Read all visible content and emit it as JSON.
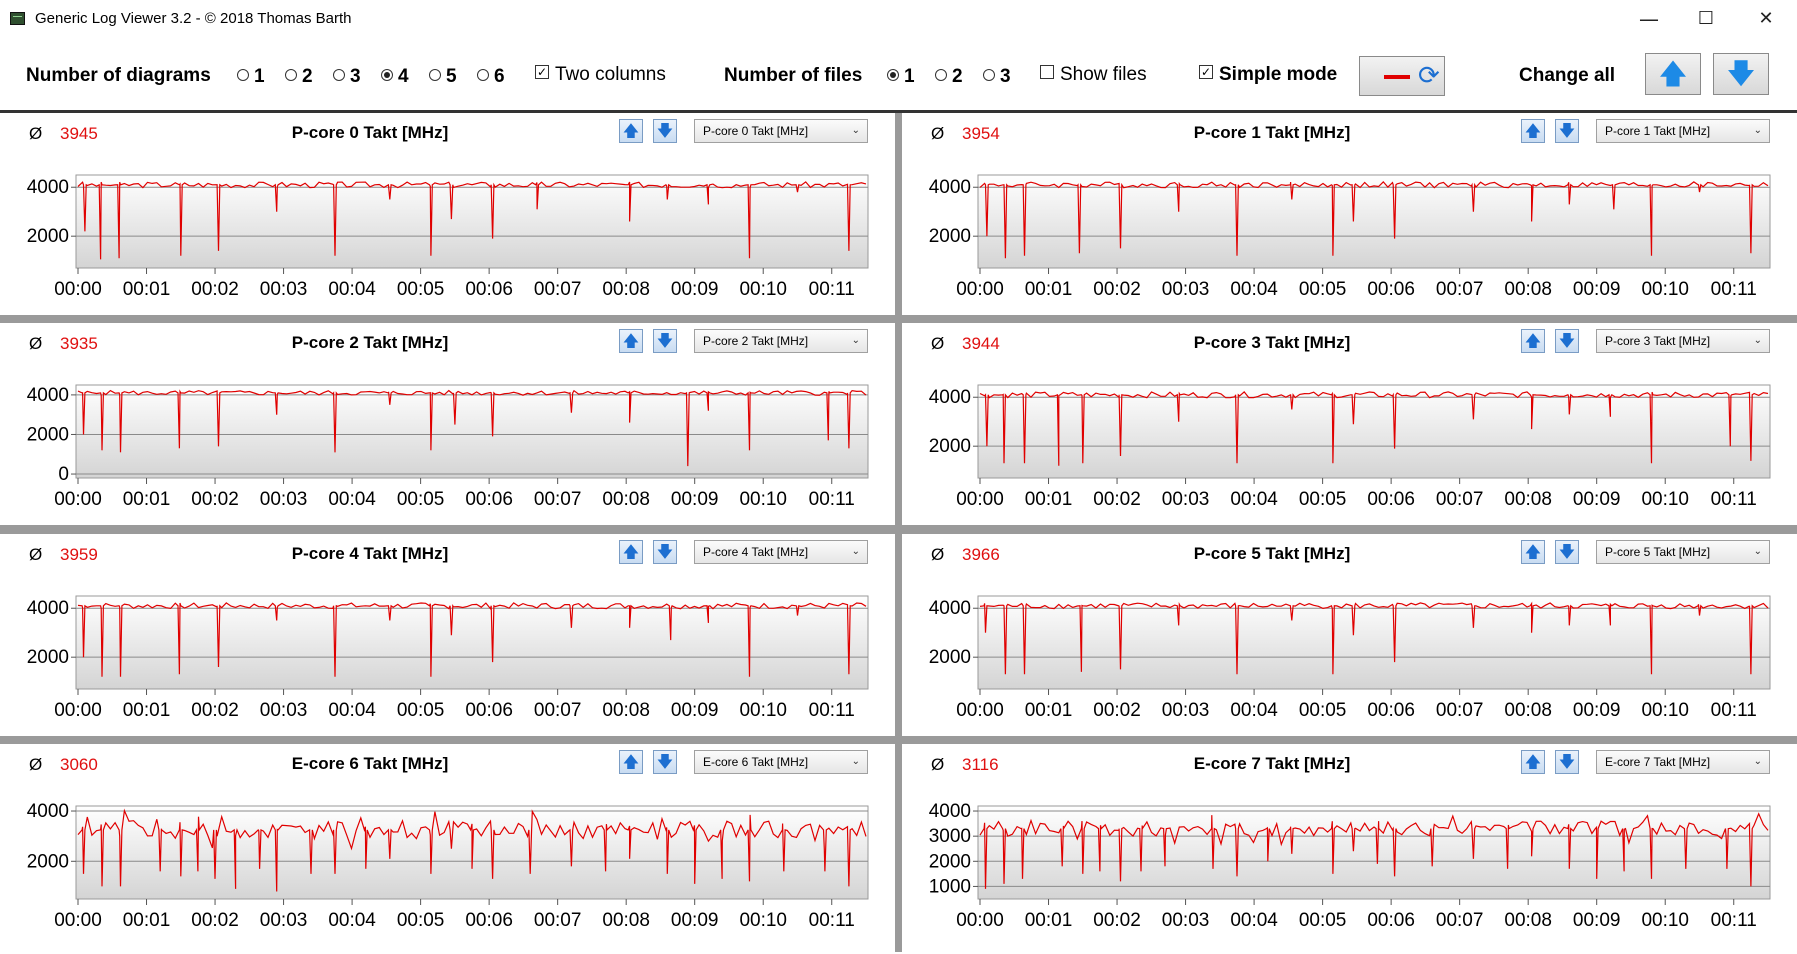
{
  "window": {
    "title": "Generic Log Viewer 3.2 - © 2018 Thomas Barth",
    "minimize": "—",
    "maximize": "☐",
    "close": "✕"
  },
  "toolbar": {
    "diagrams_label": "Number of diagrams",
    "diagram_options": [
      "1",
      "2",
      "3",
      "4",
      "5",
      "6"
    ],
    "diagrams_selected": "4",
    "two_columns_label": "Two columns",
    "two_columns_checked": true,
    "files_label": "Number of files",
    "file_options": [
      "1",
      "2",
      "3"
    ],
    "files_selected": "1",
    "show_files_label": "Show files",
    "show_files_checked": false,
    "simple_mode_label": "Simple mode",
    "simple_mode_checked": true,
    "change_all_label": "Change all",
    "line_color": "#e00000"
  },
  "avg_symbol": "Ø",
  "x_ticks": [
    "00:00",
    "00:01",
    "00:02",
    "00:03",
    "00:04",
    "00:05",
    "00:06",
    "00:07",
    "00:08",
    "00:09",
    "00:10",
    "00:11"
  ],
  "panels": [
    {
      "title": "P-core 0 Takt [MHz]",
      "avg": "3945",
      "selector": "P-core 0 Takt [MHz]"
    },
    {
      "title": "P-core 1 Takt [MHz]",
      "avg": "3954",
      "selector": "P-core 1 Takt [MHz]"
    },
    {
      "title": "P-core 2 Takt [MHz]",
      "avg": "3935",
      "selector": "P-core 2 Takt [MHz]"
    },
    {
      "title": "P-core 3 Takt [MHz]",
      "avg": "3944",
      "selector": "P-core 3 Takt [MHz]"
    },
    {
      "title": "P-core 4 Takt [MHz]",
      "avg": "3959",
      "selector": "P-core 4 Takt [MHz]"
    },
    {
      "title": "P-core 5 Takt [MHz]",
      "avg": "3966",
      "selector": "P-core 5 Takt [MHz]"
    },
    {
      "title": "E-core 6 Takt [MHz]",
      "avg": "3060",
      "selector": "E-core 6 Takt [MHz]"
    },
    {
      "title": "E-core 7 Takt [MHz]",
      "avg": "3116",
      "selector": "E-core 7 Takt [MHz]"
    }
  ],
  "chart_data": [
    {
      "type": "line",
      "title": "P-core 0 Takt [MHz]",
      "xlabel": "",
      "ylabel": "",
      "x_range": [
        "00:00",
        "00:11:30"
      ],
      "ylim": [
        700,
        4500
      ],
      "y_ticks": [
        2000,
        4000
      ],
      "grid": true,
      "color": "#e00000",
      "base": 4100,
      "jitter": 120,
      "dips": [
        [
          0.1,
          2200
        ],
        [
          0.33,
          1050
        ],
        [
          0.6,
          1100
        ],
        [
          1.5,
          1200
        ],
        [
          2.05,
          1400
        ],
        [
          2.9,
          3000
        ],
        [
          3.75,
          1200
        ],
        [
          4.55,
          3500
        ],
        [
          5.15,
          1200
        ],
        [
          5.45,
          2700
        ],
        [
          6.05,
          1900
        ],
        [
          6.7,
          3100
        ],
        [
          8.05,
          2600
        ],
        [
          8.6,
          3500
        ],
        [
          9.2,
          3300
        ],
        [
          9.8,
          1100
        ],
        [
          10.5,
          3800
        ],
        [
          11.25,
          1400
        ]
      ]
    },
    {
      "type": "line",
      "title": "P-core 1 Takt [MHz]",
      "xlabel": "",
      "ylabel": "",
      "x_range": [
        "00:00",
        "00:11:30"
      ],
      "ylim": [
        700,
        4500
      ],
      "y_ticks": [
        2000,
        4000
      ],
      "grid": true,
      "color": "#e00000",
      "base": 4100,
      "jitter": 120,
      "dips": [
        [
          0.1,
          2000
        ],
        [
          0.37,
          1100
        ],
        [
          0.65,
          1200
        ],
        [
          1.45,
          1300
        ],
        [
          2.05,
          1500
        ],
        [
          2.9,
          3000
        ],
        [
          3.75,
          1200
        ],
        [
          4.55,
          3500
        ],
        [
          5.15,
          1200
        ],
        [
          5.45,
          2600
        ],
        [
          6.05,
          1900
        ],
        [
          7.2,
          3000
        ],
        [
          8.05,
          2600
        ],
        [
          8.6,
          3300
        ],
        [
          9.25,
          3100
        ],
        [
          9.8,
          1200
        ],
        [
          10.5,
          3800
        ],
        [
          11.25,
          1300
        ]
      ]
    },
    {
      "type": "line",
      "title": "P-core 2 Takt [MHz]",
      "xlabel": "",
      "ylabel": "",
      "x_range": [
        "00:00",
        "00:11:30"
      ],
      "ylim": [
        -200,
        4500
      ],
      "y_ticks": [
        0,
        2000,
        4000
      ],
      "grid": true,
      "color": "#e00000",
      "base": 4100,
      "jitter": 120,
      "dips": [
        [
          0.08,
          2000
        ],
        [
          0.35,
          1200
        ],
        [
          0.62,
          1100
        ],
        [
          1.48,
          1300
        ],
        [
          2.05,
          1400
        ],
        [
          2.9,
          3000
        ],
        [
          3.75,
          1100
        ],
        [
          4.55,
          3500
        ],
        [
          5.15,
          1200
        ],
        [
          5.5,
          2500
        ],
        [
          6.05,
          1900
        ],
        [
          7.2,
          3100
        ],
        [
          8.05,
          2600
        ],
        [
          8.9,
          400
        ],
        [
          9.2,
          3200
        ],
        [
          9.8,
          1200
        ],
        [
          10.95,
          1700
        ],
        [
          11.25,
          1300
        ]
      ]
    },
    {
      "type": "line",
      "title": "P-core 3 Takt [MHz]",
      "xlabel": "",
      "ylabel": "",
      "x_range": [
        "00:00",
        "00:11:30"
      ],
      "ylim": [
        700,
        4500
      ],
      "y_ticks": [
        2000,
        4000
      ],
      "grid": true,
      "color": "#e00000",
      "base": 4100,
      "jitter": 120,
      "dips": [
        [
          0.1,
          2000
        ],
        [
          0.35,
          1300
        ],
        [
          0.65,
          1300
        ],
        [
          1.15,
          1200
        ],
        [
          1.5,
          1300
        ],
        [
          2.05,
          1600
        ],
        [
          2.9,
          3000
        ],
        [
          3.75,
          1300
        ],
        [
          4.55,
          3500
        ],
        [
          5.15,
          1300
        ],
        [
          5.45,
          2900
        ],
        [
          6.05,
          1900
        ],
        [
          7.2,
          3100
        ],
        [
          8.05,
          2700
        ],
        [
          8.6,
          3300
        ],
        [
          9.2,
          3200
        ],
        [
          9.8,
          1300
        ],
        [
          10.95,
          2000
        ],
        [
          11.25,
          1400
        ]
      ]
    },
    {
      "type": "line",
      "title": "P-core 4 Takt [MHz]",
      "xlabel": "",
      "ylabel": "",
      "x_range": [
        "00:00",
        "00:11:30"
      ],
      "ylim": [
        700,
        4500
      ],
      "y_ticks": [
        2000,
        4000
      ],
      "grid": true,
      "color": "#e00000",
      "base": 4100,
      "jitter": 120,
      "dips": [
        [
          0.08,
          2000
        ],
        [
          0.35,
          1200
        ],
        [
          0.62,
          1200
        ],
        [
          1.48,
          1300
        ],
        [
          2.05,
          1600
        ],
        [
          2.9,
          3500
        ],
        [
          3.75,
          1200
        ],
        [
          4.55,
          3500
        ],
        [
          5.15,
          1200
        ],
        [
          5.45,
          2900
        ],
        [
          6.05,
          1800
        ],
        [
          7.2,
          3200
        ],
        [
          8.05,
          3200
        ],
        [
          8.65,
          2700
        ],
        [
          9.2,
          3400
        ],
        [
          9.8,
          1200
        ],
        [
          10.5,
          3700
        ],
        [
          11.25,
          1300
        ]
      ]
    },
    {
      "type": "line",
      "title": "P-core 5 Takt [MHz]",
      "xlabel": "",
      "ylabel": "",
      "x_range": [
        "00:00",
        "00:11:30"
      ],
      "ylim": [
        700,
        4500
      ],
      "y_ticks": [
        2000,
        4000
      ],
      "grid": true,
      "color": "#e00000",
      "base": 4100,
      "jitter": 120,
      "dips": [
        [
          0.08,
          3000
        ],
        [
          0.37,
          1300
        ],
        [
          0.65,
          1300
        ],
        [
          1.48,
          1400
        ],
        [
          2.05,
          1500
        ],
        [
          2.9,
          3300
        ],
        [
          3.75,
          1300
        ],
        [
          4.55,
          3500
        ],
        [
          5.15,
          1300
        ],
        [
          5.45,
          2900
        ],
        [
          6.05,
          1800
        ],
        [
          7.2,
          3200
        ],
        [
          8.05,
          3000
        ],
        [
          8.6,
          3300
        ],
        [
          9.2,
          3300
        ],
        [
          9.8,
          1300
        ],
        [
          10.5,
          3700
        ],
        [
          11.25,
          1300
        ]
      ]
    },
    {
      "type": "line",
      "title": "E-core 6 Takt [MHz]",
      "xlabel": "",
      "ylabel": "",
      "x_range": [
        "00:00",
        "00:11:30"
      ],
      "ylim": [
        500,
        4200
      ],
      "y_ticks": [
        2000,
        4000
      ],
      "grid": true,
      "color": "#e00000",
      "base": 3250,
      "jitter": 350,
      "dips": [
        [
          0.08,
          1500
        ],
        [
          0.35,
          1000
        ],
        [
          0.62,
          1000
        ],
        [
          1.2,
          1600
        ],
        [
          1.5,
          1400
        ],
        [
          1.75,
          1600
        ],
        [
          2.0,
          1300
        ],
        [
          2.3,
          900
        ],
        [
          2.65,
          1700
        ],
        [
          2.9,
          800
        ],
        [
          3.4,
          1500
        ],
        [
          3.75,
          1500
        ],
        [
          4.2,
          1700
        ],
        [
          4.55,
          2100
        ],
        [
          5.15,
          1500
        ],
        [
          5.45,
          2500
        ],
        [
          5.75,
          1700
        ],
        [
          6.05,
          1300
        ],
        [
          6.6,
          1500
        ],
        [
          7.2,
          1800
        ],
        [
          7.7,
          1600
        ],
        [
          8.05,
          2100
        ],
        [
          8.6,
          1500
        ],
        [
          9.0,
          1100
        ],
        [
          9.4,
          1300
        ],
        [
          9.8,
          1200
        ],
        [
          10.3,
          1600
        ],
        [
          10.9,
          1600
        ],
        [
          11.25,
          1000
        ]
      ]
    },
    {
      "type": "line",
      "title": "E-core 7 Takt [MHz]",
      "xlabel": "",
      "ylabel": "",
      "x_range": [
        "00:00",
        "00:11:30"
      ],
      "ylim": [
        500,
        4200
      ],
      "y_ticks": [
        1000,
        2000,
        3000,
        4000
      ],
      "grid": true,
      "color": "#e00000",
      "base": 3300,
      "jitter": 300,
      "dips": [
        [
          0.08,
          900
        ],
        [
          0.35,
          1100
        ],
        [
          0.62,
          1300
        ],
        [
          1.2,
          1800
        ],
        [
          1.5,
          1500
        ],
        [
          1.75,
          1600
        ],
        [
          2.05,
          1200
        ],
        [
          2.35,
          1600
        ],
        [
          2.7,
          1800
        ],
        [
          3.4,
          1700
        ],
        [
          3.75,
          1400
        ],
        [
          4.2,
          2000
        ],
        [
          4.55,
          2300
        ],
        [
          5.15,
          1500
        ],
        [
          5.45,
          2400
        ],
        [
          5.8,
          1900
        ],
        [
          6.05,
          1400
        ],
        [
          6.6,
          1800
        ],
        [
          7.2,
          2100
        ],
        [
          7.7,
          1700
        ],
        [
          8.05,
          2200
        ],
        [
          8.6,
          1700
        ],
        [
          9.0,
          1300
        ],
        [
          9.4,
          1600
        ],
        [
          9.8,
          1300
        ],
        [
          10.3,
          1700
        ],
        [
          10.9,
          1700
        ],
        [
          11.25,
          1000
        ]
      ]
    }
  ]
}
